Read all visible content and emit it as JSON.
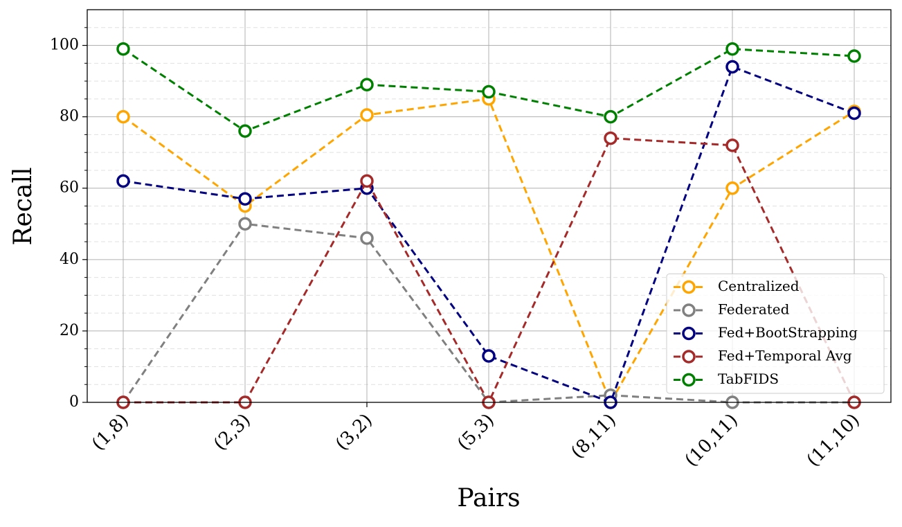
{
  "chart_data": {
    "type": "line",
    "x_label": "Pairs",
    "y_label": "Recall",
    "categories": [
      "(1,8)",
      "(2,3)",
      "(3,2)",
      "(5,3)",
      "(8,11)",
      "(10,11)",
      "(11,10)"
    ],
    "series": [
      {
        "name": "Centralized",
        "color": "#ffa500",
        "values": [
          80,
          55,
          80.5,
          85,
          0,
          60,
          81.5
        ]
      },
      {
        "name": "Federated",
        "color": "#808080",
        "values": [
          0,
          50,
          46,
          0,
          2,
          0,
          0
        ]
      },
      {
        "name": "Fed+BootStrapping",
        "color": "#000080",
        "values": [
          62,
          57,
          60,
          13,
          0,
          94,
          81
        ]
      },
      {
        "name": "Fed+Temporal Avg",
        "color": "#a52a2a",
        "values": [
          0,
          0,
          62,
          0,
          74,
          72,
          0
        ]
      },
      {
        "name": "TabFIDS",
        "color": "#008000",
        "values": [
          99,
          76,
          89,
          87,
          80,
          99,
          97
        ]
      }
    ],
    "ylim": [
      0,
      110
    ],
    "yticks": [
      0,
      20,
      40,
      60,
      80,
      100
    ],
    "minor_yticks": [
      5,
      10,
      15,
      25,
      30,
      35,
      45,
      50,
      55,
      65,
      70,
      75,
      85,
      90,
      95,
      105
    ],
    "grid": true,
    "line_style": "dashed",
    "legend_position": "lower right"
  }
}
